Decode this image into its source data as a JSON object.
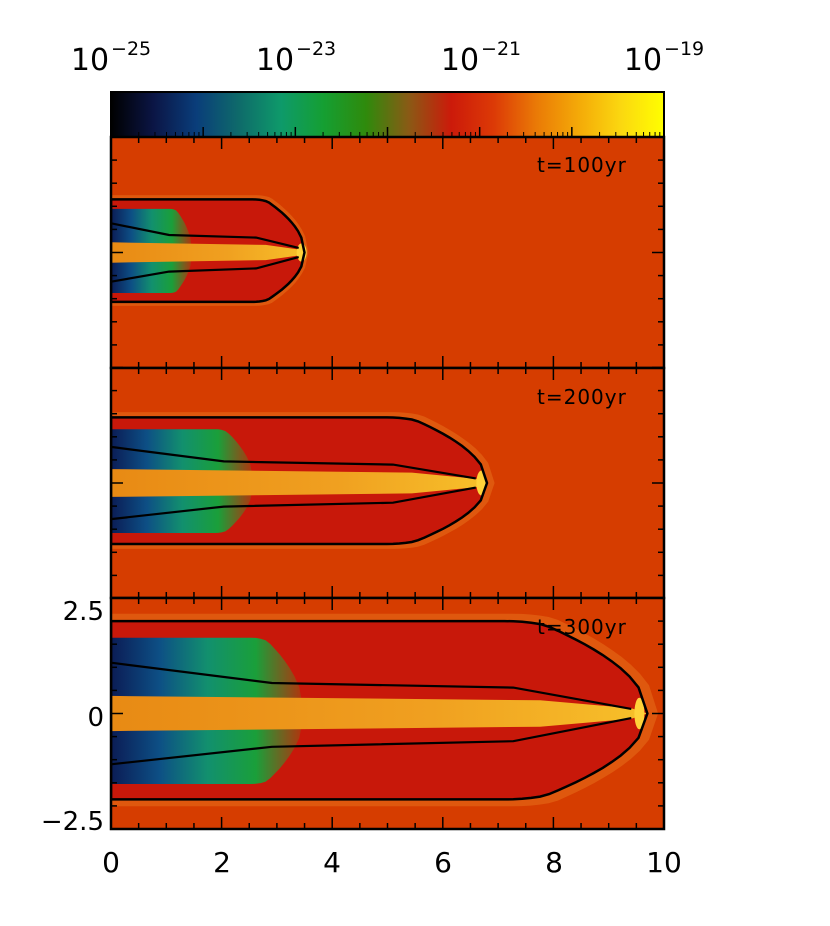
{
  "colorbar": {
    "scale": "log",
    "range": [
      -25,
      -19
    ],
    "labels": [
      {
        "base": "10",
        "exp": "−25",
        "value": -25
      },
      {
        "base": "10",
        "exp": "−23",
        "value": -23
      },
      {
        "base": "10",
        "exp": "−21",
        "value": -21
      },
      {
        "base": "10",
        "exp": "−19",
        "value": -19
      }
    ],
    "colors": [
      "#000000",
      "#0b1545",
      "#0a3d7a",
      "#0e6a6a",
      "#0e9a6a",
      "#159f32",
      "#2f8a0c",
      "#8a5a15",
      "#cc1a0a",
      "#dc3a06",
      "#ea7a06",
      "#f4aa08",
      "#fbd810",
      "#ffff00"
    ]
  },
  "background_color": "#d63d00",
  "chart_data": {
    "type": "heatmap",
    "panels": [
      {
        "time_label": "t=100yr",
        "jet_extent_x": 3.5
      },
      {
        "time_label": "t=200yr",
        "jet_extent_x": 6.8
      },
      {
        "time_label": "t=300yr",
        "jet_extent_x": 9.7
      }
    ],
    "xlim": [
      0,
      10
    ],
    "ylim": [
      -2.5,
      2.5
    ],
    "x_tick_labels": [
      "0",
      "2",
      "4",
      "6",
      "8",
      "10"
    ],
    "y_tick_labels": [
      "2.5",
      "0",
      "−2.5"
    ],
    "colorbar_range_log10": [
      -25,
      -19
    ]
  }
}
